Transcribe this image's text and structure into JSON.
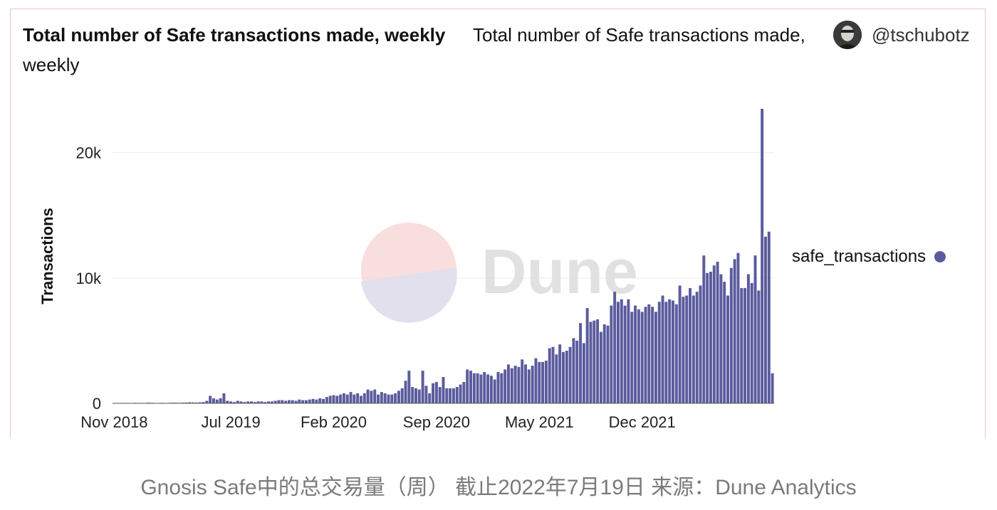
{
  "header": {
    "title": "Total number of Safe transactions made, weekly",
    "subtitle_line1": "Total number of Safe transactions made,",
    "subtitle_line2": "weekly",
    "author": "@tschubotz"
  },
  "watermark": {
    "text": "Dune"
  },
  "caption": "Gnosis Safe中的总交易量（周） 截止2022年7月19日 来源：Dune Analytics",
  "chart_data": {
    "type": "bar",
    "ylabel": "Transactions",
    "xlabel": "",
    "ylim": [
      0,
      23500
    ],
    "y_ticks": [
      0,
      10000,
      20000
    ],
    "y_tick_labels": [
      "0",
      "10k",
      "20k"
    ],
    "x_tick_labels": [
      "Nov 2018",
      "Jul 2019",
      "Feb 2020",
      "Sep 2020",
      "May 2021",
      "Dec 2021"
    ],
    "x_tick_week_index": [
      0,
      34,
      64,
      94,
      124,
      154
    ],
    "grid": true,
    "legend_position": "right",
    "series": [
      {
        "name": "safe_transactions",
        "color": "#5b5b9e",
        "values": [
          30,
          30,
          30,
          30,
          30,
          30,
          40,
          30,
          30,
          30,
          50,
          40,
          30,
          30,
          40,
          30,
          40,
          50,
          50,
          40,
          50,
          60,
          80,
          70,
          60,
          80,
          100,
          200,
          600,
          400,
          300,
          400,
          800,
          200,
          150,
          100,
          200,
          150,
          100,
          150,
          150,
          100,
          150,
          150,
          100,
          150,
          150,
          200,
          250,
          250,
          200,
          250,
          250,
          200,
          300,
          250,
          250,
          300,
          350,
          300,
          400,
          350,
          500,
          600,
          650,
          600,
          700,
          800,
          700,
          900,
          700,
          800,
          600,
          800,
          1100,
          1000,
          1100,
          700,
          900,
          800,
          700,
          700,
          800,
          1000,
          1200,
          1800,
          2600,
          1300,
          1200,
          1100,
          2600,
          1400,
          800,
          1600,
          1700,
          1300,
          2100,
          1200,
          1200,
          1200,
          1300,
          1500,
          1700,
          2700,
          2600,
          2400,
          2400,
          2300,
          2500,
          2300,
          2200,
          1900,
          2500,
          2400,
          2700,
          3100,
          2800,
          3000,
          2900,
          3500,
          3100,
          2700,
          3000,
          3600,
          3300,
          3300,
          3400,
          4400,
          4500,
          3900,
          4700,
          4100,
          4200,
          4500,
          5200,
          5000,
          6400,
          4800,
          7600,
          6500,
          6600,
          6700,
          5700,
          6300,
          6200,
          7800,
          8900,
          8100,
          8300,
          7800,
          8300,
          7300,
          7800,
          7500,
          7300,
          7700,
          7900,
          7700,
          7300,
          8100,
          8600,
          8100,
          8300,
          8200,
          7900,
          9400,
          8500,
          8600,
          9200,
          8600,
          8900,
          9400,
          11800,
          10400,
          10500,
          11000,
          11300,
          10300,
          9700,
          8600,
          10800,
          11500,
          12000,
          9200,
          9200,
          10300,
          9600,
          11800,
          9000,
          23500,
          13300,
          13700,
          2400
        ]
      }
    ]
  }
}
